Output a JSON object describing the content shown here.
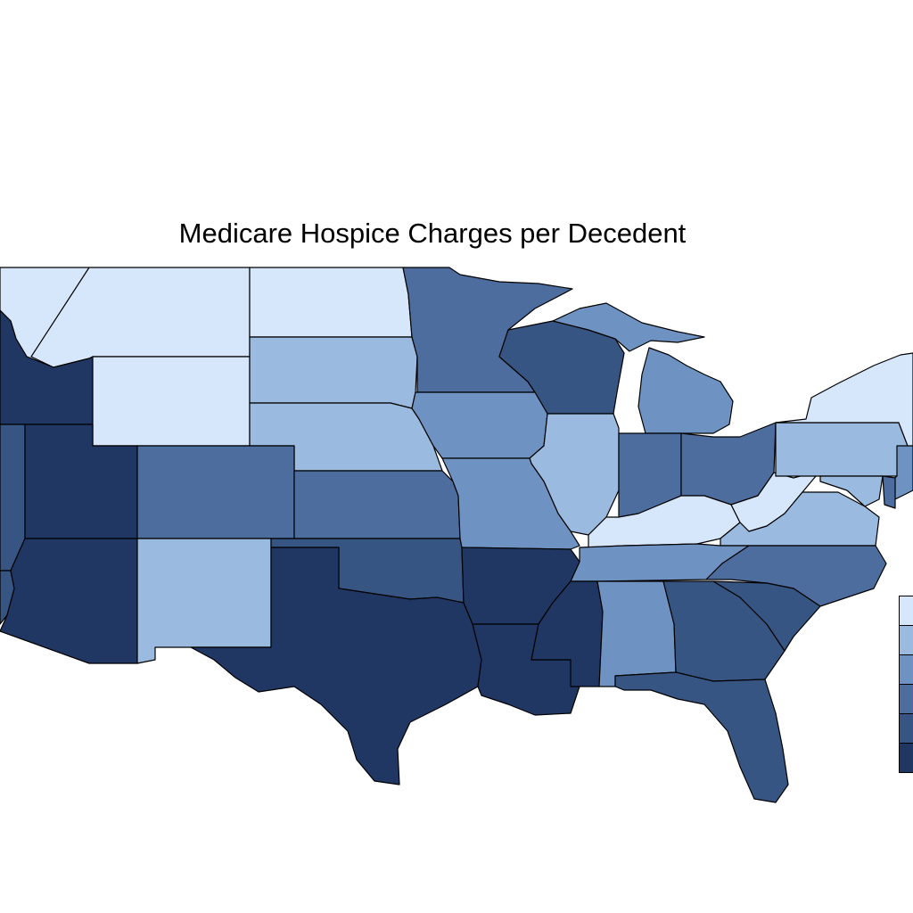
{
  "title": "Medicare Hospice Charges per Decedent",
  "palette": {
    "c1": "#d6e6fb",
    "c2": "#9bbadf",
    "c3": "#6e93c2",
    "c4": "#4c6d9e",
    "c5": "#365583",
    "c6": "#203763"
  },
  "legend": {
    "classes": [
      "c1",
      "c2",
      "c3",
      "c4",
      "c5",
      "c6"
    ]
  },
  "states": {
    "Washington": "c1",
    "Oregon": "c5",
    "Idaho": "c6",
    "Montana": "c1",
    "Wyoming": "c1",
    "North Dakota": "c1",
    "South Dakota": "c2",
    "Nebraska": "c2",
    "Kansas": "c4",
    "Colorado": "c4",
    "Utah": "c6",
    "Nevada": "c5",
    "California": "c5",
    "Arizona": "c6",
    "New Mexico": "c2",
    "Texas": "c6",
    "Oklahoma": "c5",
    "Minnesota": "c4",
    "Iowa": "c3",
    "Missouri": "c3",
    "Arkansas": "c6",
    "Louisiana": "c6",
    "Mississippi": "c6",
    "Wisconsin": "c5",
    "Illinois": "c2",
    "Michigan": "c3",
    "Indiana": "c4",
    "Ohio": "c4",
    "Kentucky": "c1",
    "Tennessee": "c3",
    "Alabama": "c3",
    "Georgia": "c5",
    "Florida": "c5",
    "South Carolina": "c5",
    "North Carolina": "c4",
    "Virginia": "c2",
    "West Virginia": "c1",
    "Pennsylvania": "c2",
    "New York": "c1",
    "New Jersey": "c3",
    "Maryland": "c2",
    "Delaware": "c4"
  }
}
